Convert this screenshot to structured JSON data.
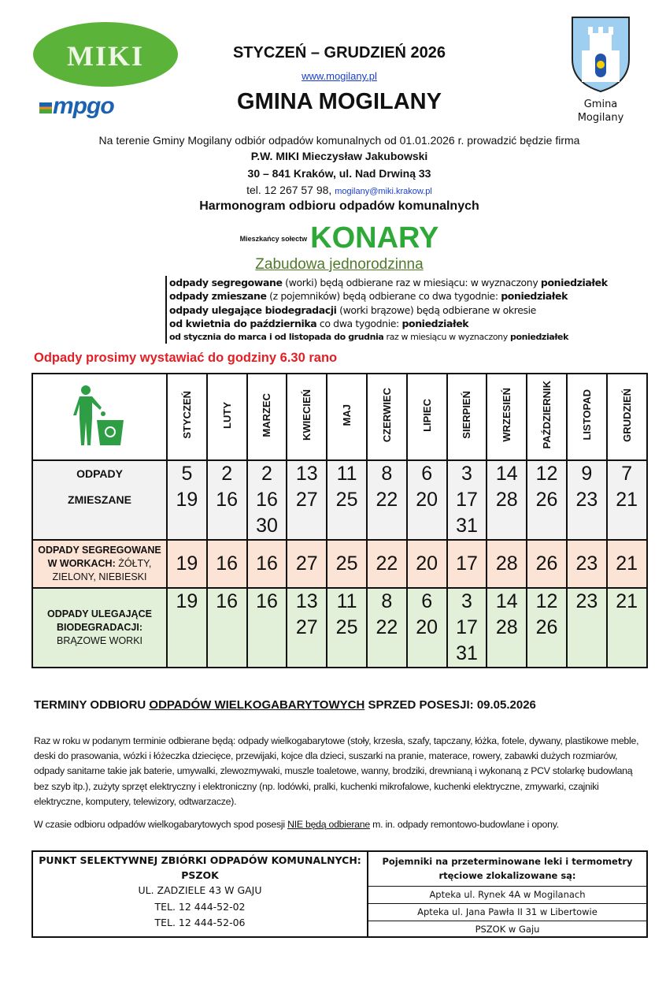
{
  "header": {
    "logo_miki": "MIKI",
    "logo_mpgo": "mpgo",
    "period": "STYCZEŃ  –  GRUDZIEŃ 2026",
    "website": "www.mogilany.pl",
    "title": "GMINA MOGILANY",
    "crest_caption_1": "Gmina",
    "crest_caption_2": "Mogilany"
  },
  "intro": {
    "text": "Na terenie Gminy Mogilany odbiór odpadów komunalnych od 01.01.2026 r. prowadzić będzie firma",
    "company": "P.W. MIKI Mieczysław Jakubowski",
    "address": "30 – 841 Kraków, ul. Nad Drwiną 33",
    "phone": "tel. 12 267 57 98, ",
    "email": "mogilany@miki.krakow.pl",
    "schedule_title": "Harmonogram odbioru odpadów komunalnych",
    "residents_label": "Mieszkańcy sołectw",
    "village": "KONARY",
    "building_type": "Zabudowa jednorodzinna"
  },
  "rules": [
    {
      "b": "odpady segregowane",
      "t": " (worki) będą odbierane raz w miesiącu: w wyznaczony ",
      "b2": "poniedziałek"
    },
    {
      "b": "odpady zmieszane",
      "t": " (z pojemników) będą odbierane co dwa tygodnie: ",
      "b2": "poniedziałek"
    },
    {
      "b": "odpady ulegające biodegradacji",
      "t": " (worki brązowe) będą odbierane w okresie",
      "b2": ""
    },
    {
      "b": "od kwietnia do października",
      "t": "  co dwa tygodnie: ",
      "b2": "poniedziałek"
    },
    {
      "b": "od stycznia do marca i od listopada do grudnia",
      "t": " raz w miesiącu w wyznaczony ",
      "b2": "poniedziałek"
    }
  ],
  "notice": "Odpady prosimy wystawiać do godziny 6.30 rano",
  "schedule": {
    "icon": "recycling-bin-person-icon",
    "months": [
      "STYCZEŃ",
      "LUTY",
      "MARZEC",
      "KWIECIEŃ",
      "MAJ",
      "CZERWIEC",
      "LIPIEC",
      "SIERPIEŃ",
      "WRZESIEŃ",
      "PAŹDZIERNIK",
      "LISTOPAD",
      "GRUDZIEŃ"
    ],
    "rows": [
      {
        "label_bold": "ODPADY\nZMIESZANE",
        "label_normal": "",
        "color": "#f2f2f2",
        "dates": [
          [
            "5",
            "19"
          ],
          [
            "2",
            "16"
          ],
          [
            "2",
            "16",
            "30"
          ],
          [
            "13",
            "27"
          ],
          [
            "11",
            "25"
          ],
          [
            "8",
            "22"
          ],
          [
            "6",
            "20"
          ],
          [
            "3",
            "17",
            "31"
          ],
          [
            "14",
            "28"
          ],
          [
            "12",
            "26"
          ],
          [
            "9",
            "23"
          ],
          [
            "7",
            "21"
          ]
        ]
      },
      {
        "label_bold": "ODPADY SEGREGOWANE\nW WORKACH:",
        "label_normal": " ŻÓŁTY,\nZIELONY, NIEBIESKI",
        "color": "#fbe4d5",
        "dates": [
          [
            "19"
          ],
          [
            "16"
          ],
          [
            "16"
          ],
          [
            "27"
          ],
          [
            "25"
          ],
          [
            "22"
          ],
          [
            "20"
          ],
          [
            "17"
          ],
          [
            "28"
          ],
          [
            "26"
          ],
          [
            "23"
          ],
          [
            "21"
          ]
        ]
      },
      {
        "label_bold": "ODPADY ULEGAJĄCE\nBIODEGRADACJI:",
        "label_normal": "\nBRĄZOWE WORKI",
        "color": "#e2efd9",
        "dates": [
          [
            "19"
          ],
          [
            "16"
          ],
          [
            "16"
          ],
          [
            "13",
            "27"
          ],
          [
            "11",
            "25"
          ],
          [
            "8",
            "22"
          ],
          [
            "6",
            "20"
          ],
          [
            "3",
            "17",
            "31"
          ],
          [
            "14",
            "28"
          ],
          [
            "12",
            "26"
          ],
          [
            "23"
          ],
          [
            "21"
          ]
        ]
      }
    ]
  },
  "bulky": {
    "heading_1": "TERMINY ODBIORU ",
    "heading_u": "ODPADÓW WIELKOGABARYTOWYCH",
    "heading_2": " SPRZED POSESJI: 09.05.2026",
    "paragraph": "Raz w roku w podanym terminie odbierane będą: odpady wielkogabarytowe (stoły, krzesła, szafy, tapczany, łóżka, fotele, dywany, plastikowe meble, deski do prasowania, wózki i łóżeczka dziecięce, przewijaki, kojce dla dzieci, suszarki na pranie, materace, rowery, zabawki dużych rozmiarów, odpady sanitarne takie jak baterie, umywalki, zlewozmywaki, muszle toaletowe, wanny, brodziki, drewnianą i wykonaną z PCV stolarkę budowlaną bez szyb itp.), zużyty sprzęt elektryczny i elektroniczny (np. lodówki, pralki, kuchenki mikrofalowe, kuchenki elektryczne, zmywarki, czajniki elektryczne, komputery, telewizory, odtwarzacze).",
    "note_1": "W czasie odbioru odpadów wielkogabarytowych spod posesji ",
    "note_u": "NIE będą odbierane",
    "note_2": " m. in. odpady remontowo-budowlane i opony."
  },
  "pszok": {
    "title": "PUNKT SELEKTYWNEJ ZBIÓRKI ODPADÓW KOMUNALNYCH:",
    "name": "PSZOK",
    "address": "UL. ZADZIELE 43 W GAJU",
    "tel1": "TEL. 12 444-52-02",
    "tel2": "TEL. 12 444-52-06"
  },
  "containers": {
    "title": "Pojemniki na przeterminowane leki i termometry rtęciowe zlokalizowane są:",
    "locations": [
      "Apteka ul. Rynek 4A w Mogilanach",
      "Apteka ul. Jana Pawła II 31 w Libertowie",
      "PSZOK w Gaju"
    ]
  }
}
